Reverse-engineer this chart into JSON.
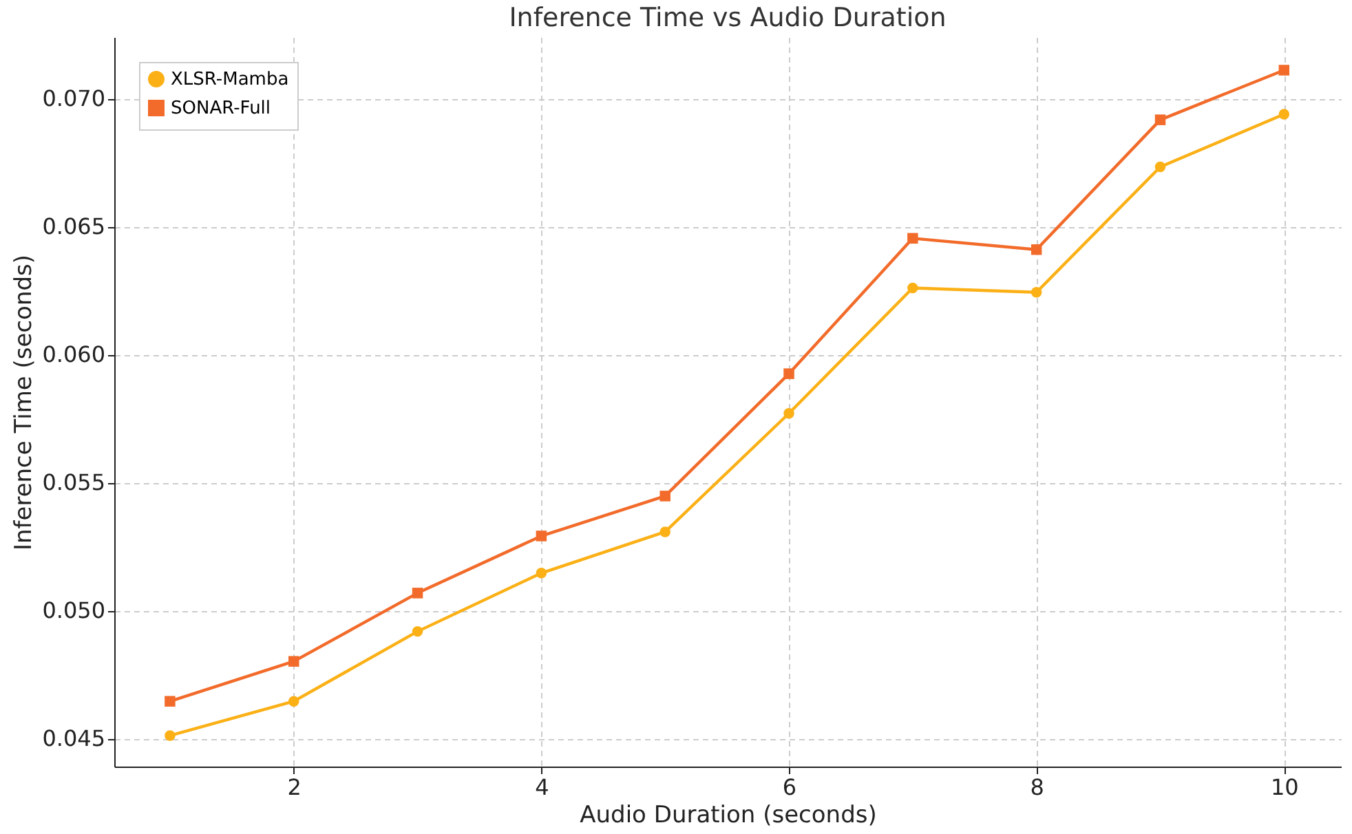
{
  "chart_data": {
    "type": "line",
    "title": "Inference Time vs Audio Duration",
    "xlabel": "Audio Duration (seconds)",
    "ylabel": "Inference Time (seconds)",
    "x": [
      1,
      2,
      3,
      4,
      5,
      6,
      7,
      8,
      9,
      10
    ],
    "series": [
      {
        "name": "XLSR-Mamba",
        "color": "#fbb016",
        "marker": "circle",
        "values": [
          0.04511,
          0.04645,
          0.04918,
          0.05146,
          0.05307,
          0.0577,
          0.0626,
          0.06243,
          0.06733,
          0.06939
        ]
      },
      {
        "name": "SONAR-Full",
        "color": "#f26b2a",
        "marker": "square",
        "values": [
          0.04645,
          0.04801,
          0.05068,
          0.05291,
          0.05447,
          0.05925,
          0.06454,
          0.0641,
          0.06917,
          0.07111
        ]
      }
    ],
    "xlim": [
      0.55,
      10.46
    ],
    "ylim": [
      0.0439,
      0.0724
    ],
    "xticks": [
      2,
      4,
      6,
      8,
      10
    ],
    "yticks": [
      0.045,
      {
        "value": 0.05,
        "label": "0.050"
      },
      0.055,
      {
        "value": 0.06,
        "label": "0.060"
      },
      0.065,
      {
        "value": 0.07,
        "label": "0.070"
      }
    ],
    "grid": true,
    "legend": "top left",
    "line_style": "solid"
  }
}
